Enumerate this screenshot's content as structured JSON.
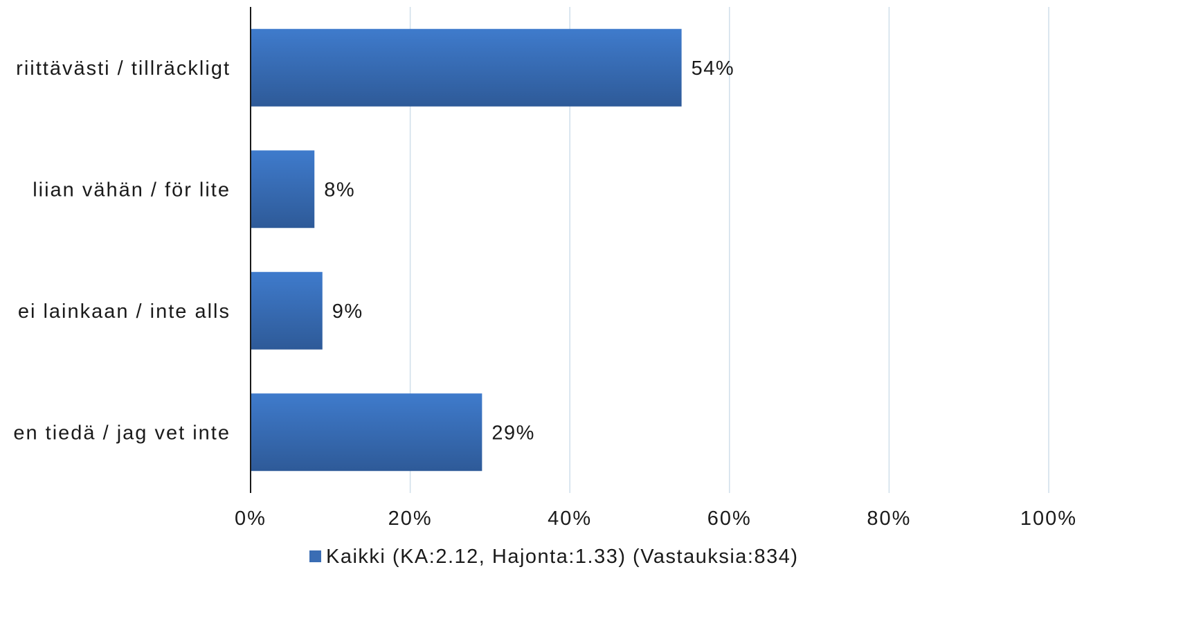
{
  "chart_data": {
    "type": "bar",
    "orientation": "horizontal",
    "categories": [
      "riittävästi / tillräckligt",
      "liian vähän / för lite",
      "ei lainkaan / inte alls",
      "en tiedä / jag vet inte"
    ],
    "series": [
      {
        "name": "Kaikki (KA:2.12, Hajonta:1.33) (Vastauksia:834)",
        "values": [
          54,
          8,
          9,
          29
        ],
        "color": "#3a6db4"
      }
    ],
    "value_labels": [
      "54%",
      "8%",
      "9%",
      "29%"
    ],
    "xlim": [
      0,
      100
    ],
    "x_ticks": [
      0,
      20,
      40,
      60,
      80,
      100
    ],
    "x_tick_labels": [
      "0%",
      "20%",
      "40%",
      "60%",
      "80%",
      "100%"
    ],
    "grid": true,
    "gridline_color": "#cfdeea",
    "legend_position": "bottom",
    "title": "",
    "xlabel": "",
    "ylabel": ""
  }
}
